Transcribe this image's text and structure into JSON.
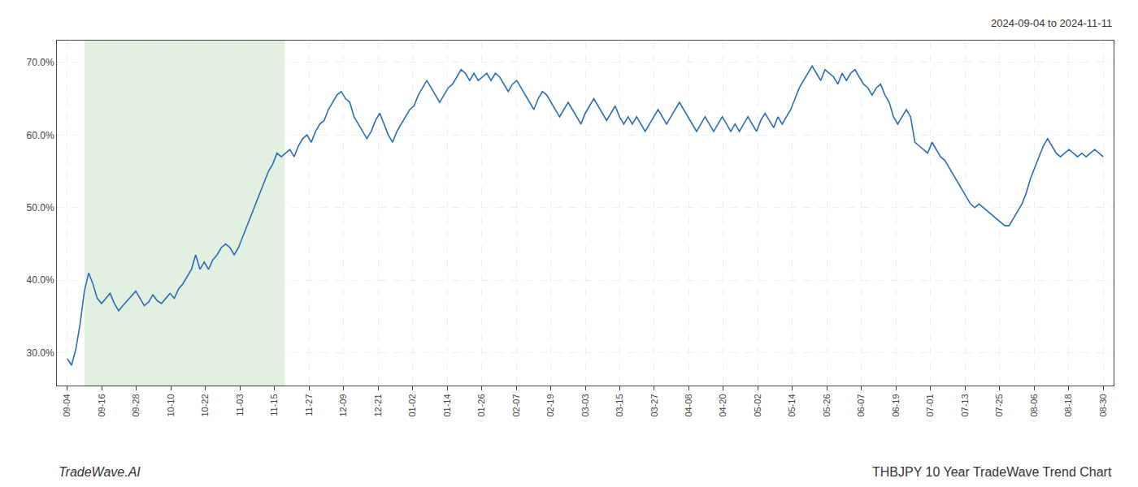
{
  "chart_data": {
    "type": "line",
    "title": "THBJPY 10 Year TradeWave Trend Chart",
    "subtitle": "2024-09-04 to 2024-11-11",
    "annotations": [
      "TradeWave.AI"
    ],
    "color": "#2b6cb8",
    "grid": true,
    "shade": {
      "x_start": 0.5,
      "x_end": 6.3,
      "color": "#d6ead6"
    },
    "xlim": [
      -0.3,
      30.3
    ],
    "xticks": [
      {
        "value": 0,
        "label": "09-04"
      },
      {
        "value": 1,
        "label": "09-16"
      },
      {
        "value": 2,
        "label": "09-28"
      },
      {
        "value": 3,
        "label": "10-10"
      },
      {
        "value": 4,
        "label": "10-22"
      },
      {
        "value": 5,
        "label": "11-03"
      },
      {
        "value": 6,
        "label": "11-15"
      },
      {
        "value": 7,
        "label": "11-27"
      },
      {
        "value": 8,
        "label": "12-09"
      },
      {
        "value": 9,
        "label": "12-21"
      },
      {
        "value": 10,
        "label": "01-02"
      },
      {
        "value": 11,
        "label": "01-14"
      },
      {
        "value": 12,
        "label": "01-26"
      },
      {
        "value": 13,
        "label": "02-07"
      },
      {
        "value": 14,
        "label": "02-19"
      },
      {
        "value": 15,
        "label": "03-03"
      },
      {
        "value": 16,
        "label": "03-15"
      },
      {
        "value": 17,
        "label": "03-27"
      },
      {
        "value": 18,
        "label": "04-08"
      },
      {
        "value": 19,
        "label": "04-20"
      },
      {
        "value": 20,
        "label": "05-02"
      },
      {
        "value": 21,
        "label": "05-14"
      },
      {
        "value": 22,
        "label": "05-26"
      },
      {
        "value": 23,
        "label": "06-07"
      },
      {
        "value": 24,
        "label": "06-19"
      },
      {
        "value": 25,
        "label": "07-01"
      },
      {
        "value": 26,
        "label": "07-13"
      },
      {
        "value": 27,
        "label": "07-25"
      },
      {
        "value": 28,
        "label": "08-06"
      },
      {
        "value": 29,
        "label": "08-18"
      },
      {
        "value": 30,
        "label": "08-30"
      }
    ],
    "ylim": [
      25.5,
      73.0
    ],
    "yticks": [
      {
        "value": 30.0,
        "label": "30.0%"
      },
      {
        "value": 40.0,
        "label": "40.0%"
      },
      {
        "value": 50.0,
        "label": "50.0%"
      },
      {
        "value": 60.0,
        "label": "60.0%"
      },
      {
        "value": 70.0,
        "label": "70.0%"
      }
    ],
    "x": [
      0,
      0.124,
      0.2479,
      0.3719,
      0.4959,
      0.6198,
      0.7438,
      0.8678,
      0.9917,
      1.1157,
      1.2397,
      1.3636,
      1.4876,
      1.6116,
      1.7355,
      1.8595,
      1.9835,
      2.1074,
      2.2314,
      2.3554,
      2.4793,
      2.6033,
      2.7273,
      2.8512,
      2.9752,
      3.0992,
      3.2231,
      3.3471,
      3.4711,
      3.595,
      3.719,
      3.843,
      3.9669,
      4.0909,
      4.2149,
      4.3388,
      4.4628,
      4.5868,
      4.7107,
      4.8347,
      4.9587,
      5.0826,
      5.2066,
      5.3306,
      5.4545,
      5.5785,
      5.7025,
      5.8264,
      5.9504,
      6.0744,
      6.1983,
      6.3223,
      6.4463,
      6.5702,
      6.6942,
      6.8182,
      6.9421,
      7.0661,
      7.1901,
      7.314,
      7.438,
      7.562,
      7.686,
      7.8099,
      7.9339,
      8.0579,
      8.1818,
      8.3058,
      8.4298,
      8.5537,
      8.6777,
      8.8017,
      8.9256,
      9.0496,
      9.1736,
      9.2975,
      9.4215,
      9.5455,
      9.6694,
      9.7934,
      9.9174,
      10.0413,
      10.1653,
      10.2893,
      10.4132,
      10.5372,
      10.6612,
      10.7851,
      10.9091,
      11.0331,
      11.157,
      11.281,
      11.405,
      11.5289,
      11.6529,
      11.7769,
      11.9008,
      12.0248,
      12.1488,
      12.2727,
      12.3967,
      12.5207,
      12.6446,
      12.7686,
      12.8926,
      13.0165,
      13.1405,
      13.2645,
      13.3884,
      13.5124,
      13.6364,
      13.7603,
      13.8843,
      14.0083,
      14.1322,
      14.2562,
      14.3802,
      14.5041,
      14.6281,
      14.7521,
      14.876,
      15,
      15.124,
      15.2479,
      15.3719,
      15.4959,
      15.6198,
      15.7438,
      15.8678,
      15.9917,
      16.1157,
      16.2397,
      16.3636,
      16.4876,
      16.6116,
      16.7355,
      16.8595,
      16.9835,
      17.1074,
      17.2314,
      17.3554,
      17.4793,
      17.6033,
      17.7273,
      17.8512,
      17.9752,
      18.0992,
      18.2231,
      18.3471,
      18.4711,
      18.595,
      18.719,
      18.843,
      18.9669,
      19.0909,
      19.2149,
      19.3388,
      19.4628,
      19.5868,
      19.7107,
      19.8347,
      19.9587,
      20.0826,
      20.2066,
      20.3306,
      20.4545,
      20.5785,
      20.7025,
      20.8264,
      20.9504,
      21.0744,
      21.1983,
      21.3223,
      21.4463,
      21.5702,
      21.6942,
      21.8182,
      21.9421,
      22.0661,
      22.1901,
      22.314,
      22.438,
      22.562,
      22.686,
      22.8099,
      22.9339,
      23.0579,
      23.1818,
      23.3058,
      23.4298,
      23.5537,
      23.6777,
      23.8017,
      23.9256,
      24.0496,
      24.1736,
      24.2975,
      24.4215,
      24.5455,
      24.6694,
      24.7934,
      24.9174,
      25.0413,
      25.1653,
      25.2893,
      25.4132,
      25.5372,
      25.6612,
      25.7851,
      25.9091,
      26.0331,
      26.157,
      26.281,
      26.405,
      26.5289,
      26.6529,
      26.7769,
      26.9008,
      27.0248,
      27.1488,
      27.2727,
      27.3967,
      27.5207,
      27.6446,
      27.7686,
      27.8926,
      28.0165,
      28.1405,
      28.2645,
      28.3884,
      28.5124,
      28.6364,
      28.7603,
      28.8843,
      29.0083,
      29.1322,
      29.2562,
      29.3802,
      29.5041,
      29.6281,
      29.7521,
      29.876,
      30
    ],
    "values": [
      29.2,
      28.3,
      30.5,
      34.0,
      38.5,
      41.0,
      39.5,
      37.5,
      36.8,
      37.5,
      38.2,
      36.8,
      35.8,
      36.5,
      37.2,
      37.8,
      38.5,
      37.5,
      36.5,
      37.0,
      38.0,
      37.2,
      36.8,
      37.5,
      38.2,
      37.5,
      38.8,
      39.5,
      40.5,
      41.5,
      43.5,
      41.5,
      42.5,
      41.5,
      42.8,
      43.5,
      44.5,
      45.0,
      44.5,
      43.5,
      44.5,
      46.0,
      47.5,
      49.0,
      50.5,
      52.0,
      53.5,
      55.0,
      56.0,
      57.5,
      57.0,
      57.5,
      58.0,
      57.0,
      58.5,
      59.5,
      60.0,
      59.0,
      60.5,
      61.5,
      62.0,
      63.5,
      64.5,
      65.5,
      66.0,
      65.0,
      64.5,
      62.5,
      61.5,
      60.5,
      59.5,
      60.5,
      62.0,
      63.0,
      61.5,
      60.0,
      59.0,
      60.5,
      61.5,
      62.5,
      63.5,
      64.0,
      65.5,
      66.5,
      67.5,
      66.5,
      65.5,
      64.5,
      65.5,
      66.5,
      67.0,
      68.0,
      69.0,
      68.5,
      67.5,
      68.5,
      67.5,
      68.0,
      68.5,
      67.5,
      68.5,
      68.0,
      67.0,
      66.0,
      67.0,
      67.5,
      66.5,
      65.5,
      64.5,
      63.5,
      65.0,
      66.0,
      65.5,
      64.5,
      63.5,
      62.5,
      63.5,
      64.5,
      63.5,
      62.5,
      61.5,
      63.0,
      64.0,
      65.0,
      64.0,
      63.0,
      62.0,
      63.0,
      64.0,
      62.5,
      61.5,
      62.5,
      61.5,
      62.5,
      61.5,
      60.5,
      61.5,
      62.5,
      63.5,
      62.5,
      61.5,
      62.5,
      63.5,
      64.5,
      63.5,
      62.5,
      61.5,
      60.5,
      61.5,
      62.5,
      61.5,
      60.5,
      61.5,
      62.5,
      61.5,
      60.5,
      61.5,
      60.5,
      61.5,
      62.5,
      61.5,
      60.5,
      62.0,
      63.0,
      62.0,
      61.0,
      62.5,
      61.5,
      62.5,
      63.5,
      65.0,
      66.5,
      67.5,
      68.5,
      69.5,
      68.5,
      67.5,
      69.0,
      68.5,
      68.0,
      67.0,
      68.5,
      67.5,
      68.5,
      69.0,
      68.0,
      67.0,
      66.5,
      65.5,
      66.5,
      67.0,
      65.5,
      64.5,
      62.5,
      61.5,
      62.5,
      63.5,
      62.5,
      59.0,
      58.5,
      58.0,
      57.5,
      59.0,
      58.0,
      57.0,
      56.5,
      55.5,
      54.5,
      53.5,
      52.5,
      51.5,
      50.5,
      50.0,
      50.5,
      50.0,
      49.5,
      49.0,
      48.5,
      48.0,
      47.5,
      47.5,
      48.5,
      49.5,
      50.5,
      52.0,
      54.0,
      55.5,
      57.0,
      58.5,
      59.5,
      58.5,
      57.5,
      57.0,
      57.5,
      58.0,
      57.5,
      57.0,
      57.5,
      57.0,
      57.5,
      58.0,
      57.5,
      57.0
    ]
  }
}
